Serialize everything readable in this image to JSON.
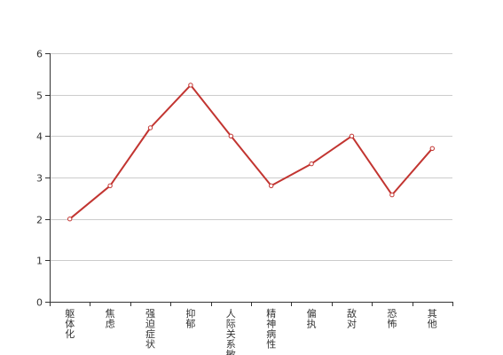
{
  "chart_data": {
    "type": "line",
    "title": "",
    "xlabel": "",
    "ylabel": "",
    "categories": [
      "躯体化",
      "焦虑",
      "强迫症状",
      "抑郁",
      "人际关系敏感",
      "精神病性",
      "偏执",
      "敌对",
      "恐怖",
      "其他"
    ],
    "series": [
      {
        "name": "",
        "values": [
          2.0,
          2.8,
          4.2,
          5.23,
          4.0,
          2.8,
          3.33,
          4.0,
          2.58,
          3.7
        ]
      }
    ],
    "ylim": [
      0,
      6
    ],
    "yticks": [
      "0",
      "1",
      "2",
      "3",
      "4",
      "5",
      "6"
    ],
    "grid": true,
    "legend": "none",
    "line_color": "#c23531",
    "grid_color": "#cccccc",
    "axis_color": "#333333"
  }
}
